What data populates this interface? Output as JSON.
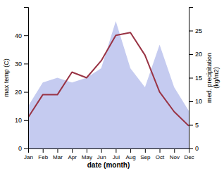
{
  "chart_data": {
    "type": "line",
    "categories": [
      "Jan",
      "Feb",
      "Mar",
      "Apr",
      "May",
      "Jun",
      "Jul",
      "Aug",
      "Sep",
      "Oct",
      "Nov",
      "Dec"
    ],
    "xlabel": "date (month)",
    "ylabel": "max temp (C)",
    "y2label": "med. precipitation\n(kg/m2)",
    "ylim": [
      0,
      50
    ],
    "yticks": [
      0,
      10,
      20,
      30,
      40
    ],
    "y2lim": [
      0,
      30
    ],
    "y2ticks": [
      0,
      5,
      10,
      15,
      20,
      25
    ],
    "grid": false,
    "series": [
      {
        "type": "area",
        "axis": "y2",
        "color": "#c5cbf0",
        "values": [
          9,
          14,
          15,
          14,
          15,
          17,
          27,
          17,
          13,
          22,
          13,
          8
        ]
      },
      {
        "type": "line",
        "color": "#993344",
        "values": [
          11,
          19,
          19,
          27,
          25,
          31,
          40,
          41,
          33,
          20,
          13,
          8
        ]
      }
    ]
  }
}
